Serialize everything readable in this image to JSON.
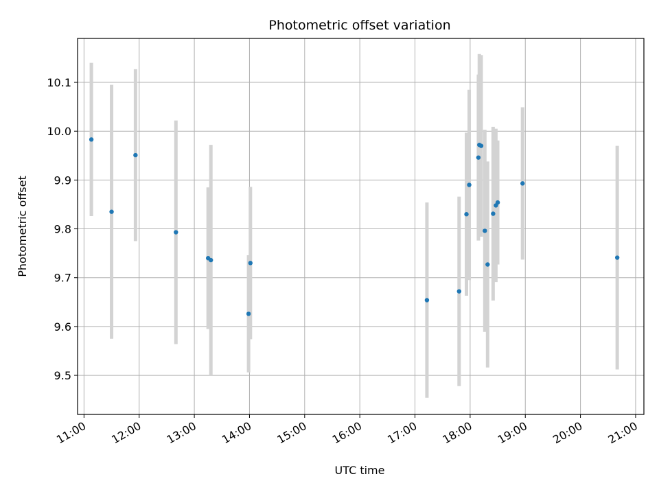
{
  "chart_data": {
    "type": "scatter",
    "title": "Photometric offset variation",
    "xlabel": "UTC time",
    "ylabel": "Photometric offset",
    "grid": true,
    "xlim": [
      "10:53",
      "21:09"
    ],
    "ylim": [
      9.42,
      10.19
    ],
    "x_ticks": [
      "11:00",
      "12:00",
      "13:00",
      "14:00",
      "15:00",
      "16:00",
      "17:00",
      "18:00",
      "19:00",
      "20:00",
      "21:00"
    ],
    "y_ticks": [
      "9.5",
      "9.6",
      "9.7",
      "9.8",
      "9.9",
      "10.0",
      "10.1"
    ],
    "colors": {
      "point": "#1f77b4",
      "errorbar": "#d3d3d3",
      "grid": "#b0b0b0"
    },
    "points": [
      {
        "t": "11:08",
        "y": 9.983,
        "err": 0.157
      },
      {
        "t": "11:30",
        "y": 9.835,
        "err": 0.26
      },
      {
        "t": "11:56",
        "y": 9.951,
        "err": 0.176
      },
      {
        "t": "12:40",
        "y": 9.793,
        "err": 0.229
      },
      {
        "t": "13:15",
        "y": 9.74,
        "err": 0.145
      },
      {
        "t": "13:18",
        "y": 9.736,
        "err": 0.236
      },
      {
        "t": "13:59",
        "y": 9.626,
        "err": 0.12
      },
      {
        "t": "14:01",
        "y": 9.73,
        "err": 0.156
      },
      {
        "t": "17:13",
        "y": 9.654,
        "err": 0.2
      },
      {
        "t": "17:48",
        "y": 9.672,
        "err": 0.194
      },
      {
        "t": "17:56",
        "y": 9.83,
        "err": 0.167
      },
      {
        "t": "17:59",
        "y": 9.89,
        "err": 0.195
      },
      {
        "t": "18:09",
        "y": 9.946,
        "err": 0.17
      },
      {
        "t": "18:10",
        "y": 9.972,
        "err": 0.186
      },
      {
        "t": "18:12",
        "y": 9.97,
        "err": 0.186
      },
      {
        "t": "18:16",
        "y": 9.796,
        "err": 0.207
      },
      {
        "t": "18:19",
        "y": 9.727,
        "err": 0.211
      },
      {
        "t": "18:25",
        "y": 9.831,
        "err": 0.178
      },
      {
        "t": "18:28",
        "y": 9.848,
        "err": 0.157
      },
      {
        "t": "18:30",
        "y": 9.854,
        "err": 0.127
      },
      {
        "t": "18:57",
        "y": 9.893,
        "err": 0.156
      },
      {
        "t": "20:40",
        "y": 9.741,
        "err": 0.229
      }
    ]
  }
}
